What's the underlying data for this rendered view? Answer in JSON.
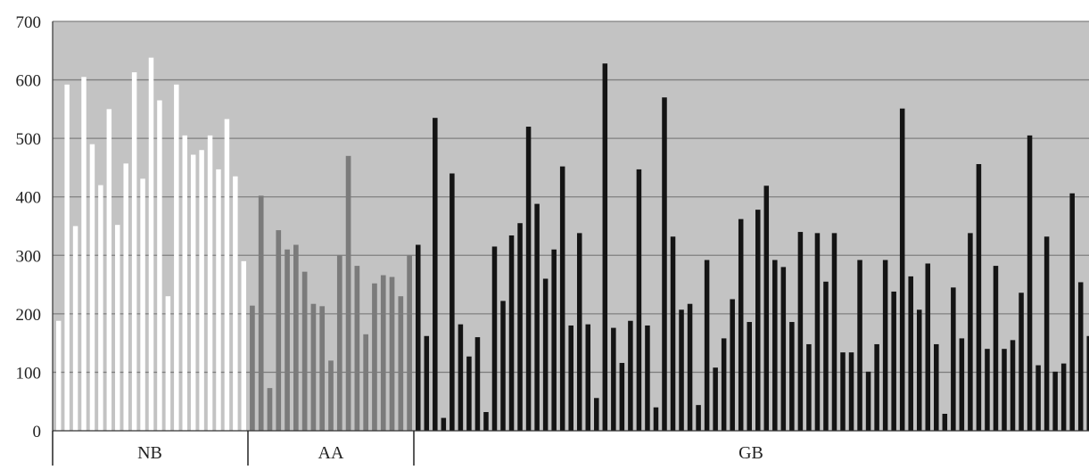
{
  "chart_data": {
    "type": "bar",
    "ylim": [
      0,
      700
    ],
    "yticks": [
      "0",
      "100",
      "200",
      "300",
      "400",
      "500",
      "600",
      "700"
    ],
    "grid": true,
    "colors": {
      "plot_bg": "#c3c3c3",
      "grid": "#808080",
      "NB": "#ffffff",
      "AA": "#7b7b7b",
      "GB": "#141414"
    },
    "groups": [
      {
        "name": "NB",
        "values": [
          188,
          592,
          350,
          605,
          490,
          420,
          550,
          352,
          457,
          613,
          431,
          638,
          565,
          230,
          592,
          505,
          472,
          480,
          505,
          447,
          533,
          435,
          290
        ]
      },
      {
        "name": "AA",
        "values": [
          214,
          402,
          73,
          343,
          310,
          318,
          272,
          217,
          213,
          120,
          300,
          470,
          282,
          165,
          252,
          266,
          263,
          230,
          300
        ]
      },
      {
        "name": "GB",
        "values": [
          318,
          162,
          535,
          22,
          440,
          182,
          127,
          160,
          32,
          315,
          222,
          334,
          355,
          520,
          388,
          260,
          310,
          452,
          180,
          338,
          182,
          56,
          628,
          176,
          116,
          188,
          447,
          180,
          40,
          570,
          332,
          207,
          217,
          44,
          292,
          108,
          158,
          225,
          362,
          186,
          378,
          419,
          292,
          280,
          186,
          340,
          148,
          338,
          255,
          338,
          134,
          134,
          292,
          101,
          148,
          292,
          238,
          551,
          264,
          207,
          286,
          148,
          29,
          245,
          158,
          338,
          456,
          140,
          282,
          140,
          155,
          236,
          505,
          112,
          332,
          101,
          115,
          406,
          254,
          162
        ]
      }
    ]
  }
}
